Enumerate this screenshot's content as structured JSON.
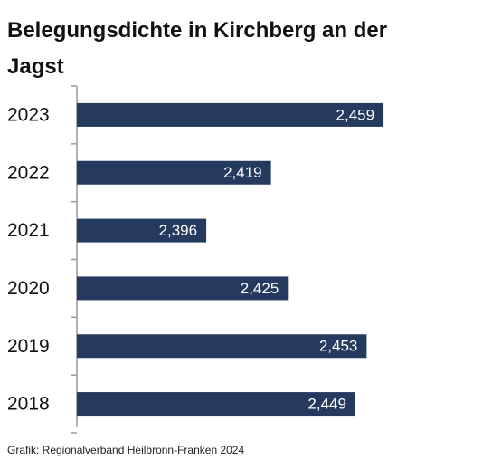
{
  "chart_data": {
    "type": "bar",
    "orientation": "horizontal",
    "title": "Belegungsdichte in Kirchberg an der Jagst",
    "categories": [
      "2023",
      "2022",
      "2021",
      "2020",
      "2019",
      "2018"
    ],
    "values": [
      2.459,
      2.419,
      2.396,
      2.425,
      2.453,
      2.449
    ],
    "value_labels": [
      "2,459",
      "2,419",
      "2,396",
      "2,425",
      "2,453",
      "2,449"
    ],
    "color": "#243a5e",
    "xlim": [
      2.35,
      2.49
    ],
    "source": "Grafik: Regionalverband Heilbronn-Franken 2024"
  }
}
